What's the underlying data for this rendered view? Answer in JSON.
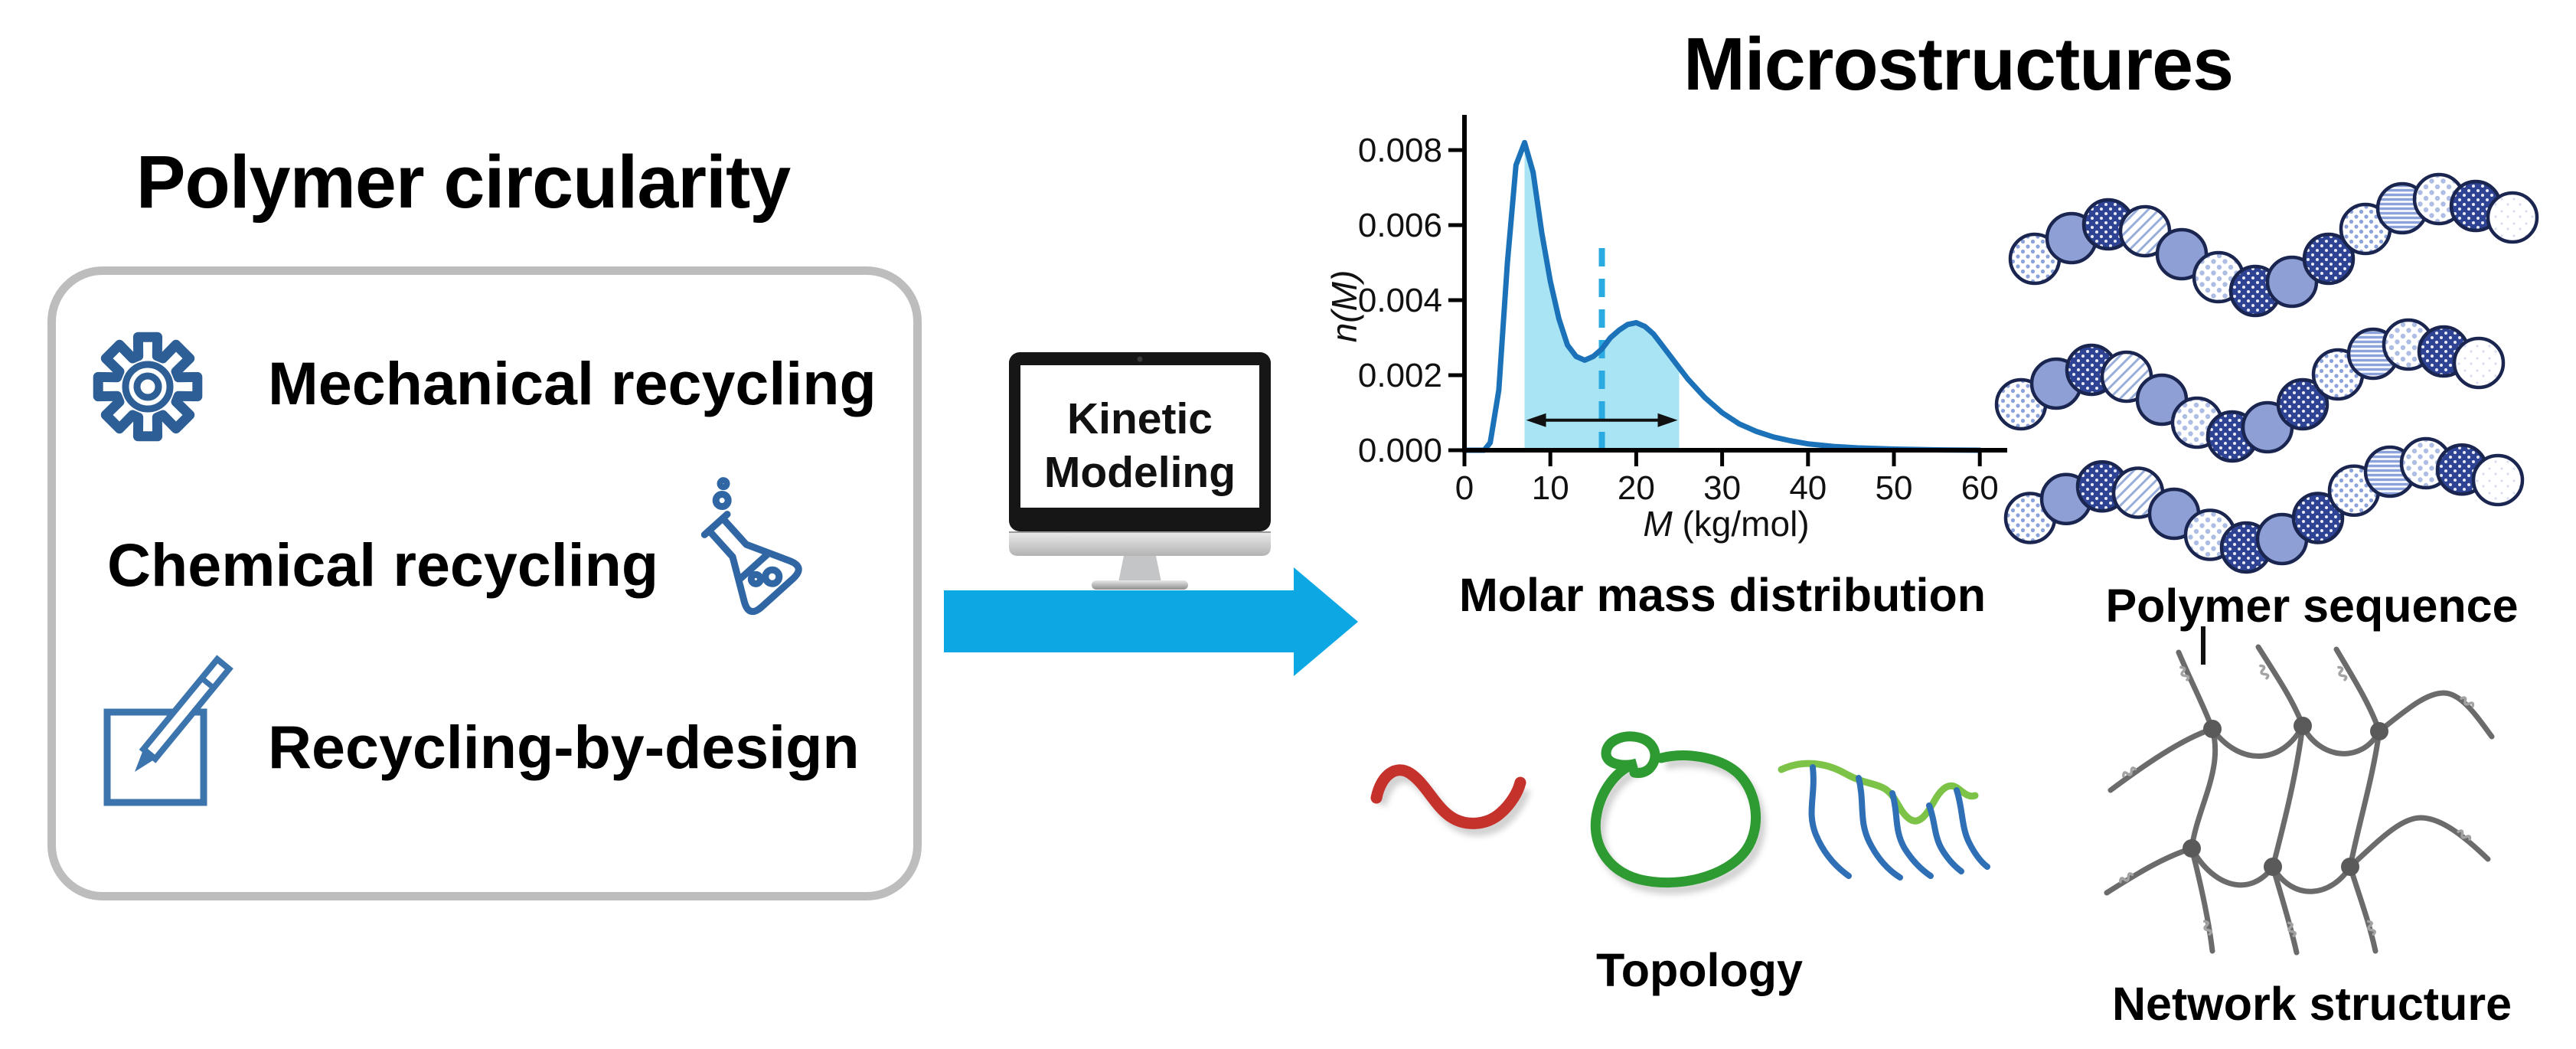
{
  "left_panel": {
    "title": "Polymer circularity",
    "items": [
      {
        "icon": "gear-icon",
        "label": "Mechanical recycling"
      },
      {
        "icon": "flask-icon",
        "label": "Chemical recycling"
      },
      {
        "icon": "pencil-square-icon",
        "label": "Recycling-by-design"
      }
    ]
  },
  "process": {
    "monitor_label_line1": "Kinetic",
    "monitor_label_line2": "Modeling"
  },
  "right_panel": {
    "title": "Microstructures",
    "captions": {
      "chart": "Molar mass distribution",
      "sequence": "Polymer sequence",
      "topology": "Topology",
      "network": "Network structure"
    }
  },
  "chart_data": {
    "type": "line",
    "title": "",
    "xlabel_italic": "M",
    "xlabel_rest": " (kg/mol)",
    "ylabel": "n(M)",
    "xlim": [
      0,
      60
    ],
    "ylim": [
      0,
      0.009
    ],
    "xticks": [
      0,
      10,
      20,
      30,
      40,
      50,
      60
    ],
    "yticks": [
      0,
      0.002,
      0.004,
      0.006,
      0.008
    ],
    "ytick_labels": [
      "0.000",
      "0.002",
      "0.004",
      "0.006",
      "0.008"
    ],
    "grid": false,
    "legend": false,
    "x": [
      0,
      2.3,
      3,
      4,
      5,
      6,
      7,
      8,
      9,
      10,
      11,
      12,
      13,
      14,
      15,
      16,
      17,
      18,
      19,
      20,
      21,
      22,
      23,
      24,
      25,
      26,
      27,
      28,
      30,
      32,
      34,
      36,
      38,
      40,
      43,
      46,
      50,
      55,
      60
    ],
    "y": [
      0,
      0,
      0.0002,
      0.0016,
      0.005,
      0.0076,
      0.0082,
      0.0074,
      0.0058,
      0.0045,
      0.0035,
      0.0028,
      0.0025,
      0.0024,
      0.0025,
      0.0027,
      0.003,
      0.0032,
      0.00335,
      0.0034,
      0.0033,
      0.0031,
      0.0028,
      0.0025,
      0.0022,
      0.0019,
      0.00165,
      0.0014,
      0.001,
      0.0007,
      0.0005,
      0.00035,
      0.00025,
      0.00017,
      0.0001,
      6e-05,
      3e-05,
      1e-05,
      0
    ],
    "shaded_region_x": [
      7,
      25
    ],
    "dashed_line_x": 16,
    "dashed_line_top_n": 0.0056,
    "span_arrow": {
      "x1": 7,
      "x2": 25,
      "y": 0.0008
    }
  },
  "polymer_sequence": {
    "chains": [
      {
        "beads": [
          "lightdots",
          "periwinkle",
          "navydots",
          "hatch",
          "periwinkle",
          "bigdots",
          "navydots",
          "periwinkle",
          "navydots",
          "lightdots",
          "stripes",
          "bigdots",
          "navydots",
          "plain"
        ]
      },
      {
        "beads": [
          "lightdots",
          "periwinkle",
          "navydots",
          "hatch",
          "periwinkle",
          "bigdots",
          "navydots",
          "periwinkle",
          "navydots",
          "lightdots",
          "stripes",
          "bigdots",
          "navydots",
          "plain"
        ]
      },
      {
        "beads": [
          "lightdots",
          "periwinkle",
          "navydots",
          "hatch",
          "periwinkle",
          "bigdots",
          "navydots",
          "periwinkle",
          "navydots",
          "lightdots",
          "stripes",
          "bigdots",
          "navydots",
          "plain"
        ]
      }
    ]
  },
  "colors": {
    "icon_blue": "#2D5F96",
    "arrow_cyan": "#0DA7E3",
    "curve_blue": "#1B72B8",
    "fill_cyan": "#A8E4F3",
    "dashed_cyan": "#29ABE2",
    "box_border_gray": "#BDBDBD",
    "bead_navy": "#2E4394",
    "bead_periwinkle": "#8E9FD5",
    "topology_red": "#C5322B",
    "topology_green": "#2E9B32",
    "branch_green": "#7CC347",
    "branch_blue": "#2F6FB5",
    "network_gray": "#6B6B6B"
  }
}
